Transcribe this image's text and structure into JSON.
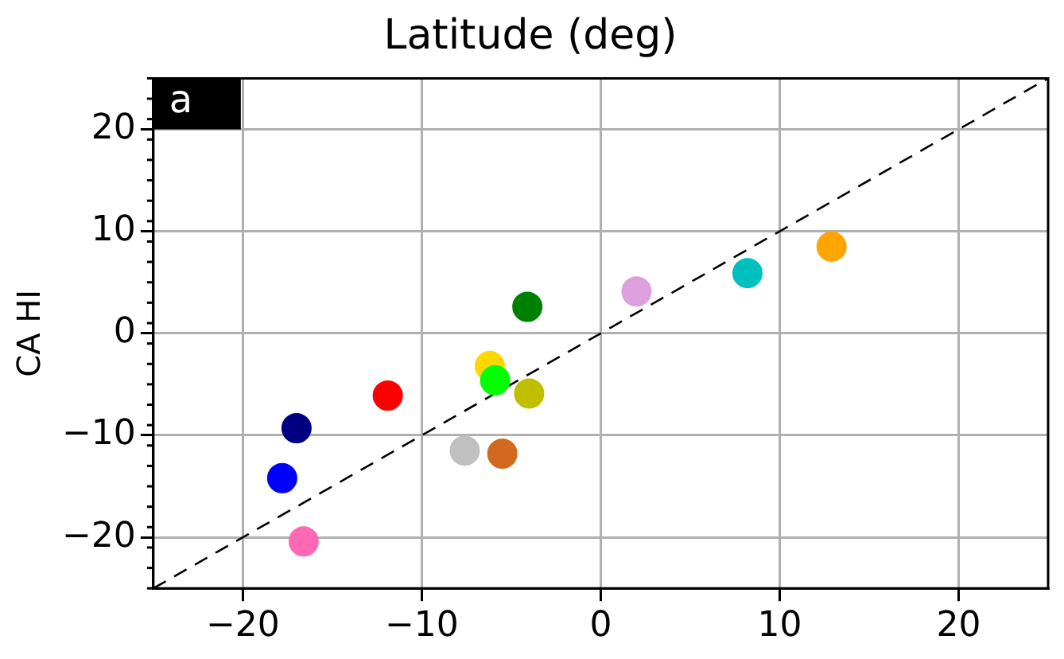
{
  "chart_data": {
    "type": "scatter",
    "title": "Latitude (deg)",
    "ylabel": "CA HI",
    "annotations": [
      "a"
    ],
    "x": [
      -4.1,
      2.0,
      8.2,
      12.9,
      -6.2,
      -5.9,
      -4.0,
      -11.9,
      -17.0,
      -7.6,
      -5.5,
      -17.8,
      -16.6
    ],
    "values": [
      2.6,
      4.1,
      5.9,
      8.5,
      -3.2,
      -4.6,
      -5.9,
      -6.1,
      -9.3,
      -11.5,
      -11.8,
      -14.2,
      -20.4
    ],
    "colors": [
      "#008000",
      "#dda0dd",
      "#00bfbf",
      "#ffa500",
      "#ffd700",
      "#00ff00",
      "#bfbf00",
      "#ff0000",
      "#000080",
      "#c0c0c0",
      "#d2691e",
      "#0000ff",
      "#ff69b4"
    ],
    "series": [
      {
        "type": "line",
        "x": [
          -25,
          25
        ],
        "values": [
          -25,
          25
        ],
        "color": "#000000",
        "line_style": "dashed",
        "marker": "none"
      }
    ],
    "xlim": [
      -25,
      25
    ],
    "ylim": [
      -25,
      25
    ],
    "xticks": [
      -20,
      -10,
      0,
      10,
      20
    ],
    "yticks": [
      -20,
      -10,
      0,
      10,
      20
    ],
    "grid": true,
    "legend": false,
    "marker": "circle"
  }
}
